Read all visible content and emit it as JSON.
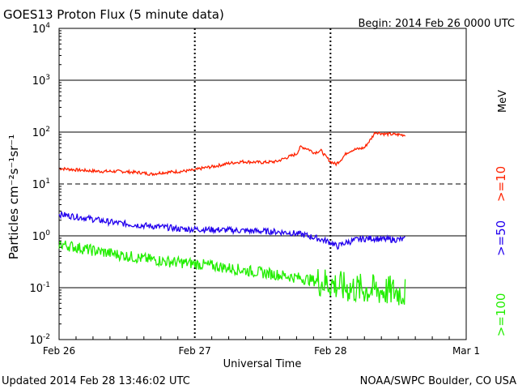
{
  "chart_data": {
    "type": "line",
    "title": "GOES13 Proton Flux (5 minute data)",
    "begin_label": "Begin: 2014 Feb 26 0000 UTC",
    "xlabel": "Universal Time",
    "ylabel": "Particles cm⁻²s⁻¹sr⁻¹",
    "y_scale": "log",
    "ylim": [
      0.01,
      10000
    ],
    "xlim": [
      0,
      3
    ],
    "x_ticks": [
      {
        "value": 0,
        "label": "Feb 26"
      },
      {
        "value": 1,
        "label": "Feb 27"
      },
      {
        "value": 2,
        "label": "Feb 28"
      },
      {
        "value": 3,
        "label": "Mar 1"
      }
    ],
    "y_ticks": [
      {
        "exp": -2,
        "base": "10",
        "sup": "-2"
      },
      {
        "exp": -1,
        "base": "10",
        "sup": "-1"
      },
      {
        "exp": 0,
        "base": "10",
        "sup": "0"
      },
      {
        "exp": 1,
        "base": "10",
        "sup": "1"
      },
      {
        "exp": 2,
        "base": "10",
        "sup": "2"
      },
      {
        "exp": 3,
        "base": "10",
        "sup": "3"
      },
      {
        "exp": 4,
        "base": "10",
        "sup": "4"
      }
    ],
    "threshold_lines": [
      0.1,
      1,
      100,
      1000
    ],
    "dashed_lines": [
      10
    ],
    "unit_label": "MeV",
    "series": [
      {
        "name": ">=10",
        "color": "#ff2200",
        "noise": 0.03,
        "points": [
          [
            0,
            20
          ],
          [
            0.15,
            18.5
          ],
          [
            0.3,
            17.5
          ],
          [
            0.45,
            17.5
          ],
          [
            0.6,
            16.5
          ],
          [
            0.68,
            15.5
          ],
          [
            0.75,
            16.5
          ],
          [
            0.9,
            17.5
          ],
          [
            1.0,
            18.5
          ],
          [
            1.05,
            20
          ],
          [
            1.15,
            22
          ],
          [
            1.25,
            25
          ],
          [
            1.35,
            27
          ],
          [
            1.5,
            26
          ],
          [
            1.6,
            27
          ],
          [
            1.7,
            34
          ],
          [
            1.75,
            38
          ],
          [
            1.78,
            52
          ],
          [
            1.83,
            48
          ],
          [
            1.88,
            40
          ],
          [
            1.93,
            44
          ],
          [
            1.96,
            35
          ],
          [
            2.0,
            27
          ],
          [
            2.04,
            24
          ],
          [
            2.08,
            30
          ],
          [
            2.12,
            40
          ],
          [
            2.16,
            45
          ],
          [
            2.25,
            50
          ],
          [
            2.3,
            75
          ],
          [
            2.33,
            100
          ],
          [
            2.4,
            92
          ],
          [
            2.55,
            88
          ]
        ]
      },
      {
        "name": ">=50",
        "color": "#2200ee",
        "noise": 0.06,
        "points": [
          [
            0,
            2.6
          ],
          [
            0.2,
            2.2
          ],
          [
            0.4,
            1.8
          ],
          [
            0.6,
            1.6
          ],
          [
            0.8,
            1.45
          ],
          [
            0.9,
            1.35
          ],
          [
            1.0,
            1.35
          ],
          [
            1.2,
            1.3
          ],
          [
            1.4,
            1.25
          ],
          [
            1.6,
            1.2
          ],
          [
            1.7,
            1.15
          ],
          [
            1.8,
            1.05
          ],
          [
            1.9,
            0.9
          ],
          [
            2.0,
            0.75
          ],
          [
            2.05,
            0.62
          ],
          [
            2.1,
            0.72
          ],
          [
            2.2,
            0.85
          ],
          [
            2.3,
            0.9
          ],
          [
            2.4,
            0.85
          ],
          [
            2.55,
            0.85
          ]
        ]
      },
      {
        "name": ">=100",
        "color": "#22ee00",
        "noise": 0.11,
        "points": [
          [
            0,
            0.7
          ],
          [
            0.2,
            0.55
          ],
          [
            0.4,
            0.45
          ],
          [
            0.6,
            0.37
          ],
          [
            0.8,
            0.32
          ],
          [
            1.0,
            0.29
          ],
          [
            1.2,
            0.25
          ],
          [
            1.4,
            0.21
          ],
          [
            1.6,
            0.18
          ],
          [
            1.8,
            0.15
          ],
          [
            2.0,
            0.12
          ],
          [
            2.1,
            0.1
          ],
          [
            2.3,
            0.09
          ],
          [
            2.45,
            0.085
          ],
          [
            2.55,
            0.08
          ]
        ]
      }
    ]
  },
  "footer": {
    "updated": "Updated 2014 Feb 28 13:46:02 UTC",
    "source": "NOAA/SWPC Boulder, CO USA"
  }
}
